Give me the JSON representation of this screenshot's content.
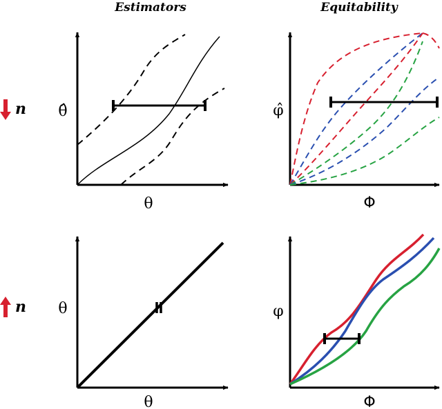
{
  "titles": {
    "left": "Estimators",
    "right": "Equitability"
  },
  "rows": [
    {
      "n_label": "n",
      "arrow": "down-arrow",
      "left_y": "θ̂",
      "left_x": "θ",
      "right_y": "φ̂",
      "right_x": "Φ"
    },
    {
      "n_label": "n",
      "arrow": "up-arrow",
      "left_y": "θ",
      "left_x": "θ",
      "right_y": "φ",
      "right_x": "Φ"
    }
  ],
  "colors": {
    "red": "#d7202f",
    "blue": "#2a4fb0",
    "green": "#27a343",
    "arrow": "#d7202f",
    "axes": "#000000"
  },
  "icons": [
    "down-arrow-icon",
    "up-arrow-icon"
  ]
}
